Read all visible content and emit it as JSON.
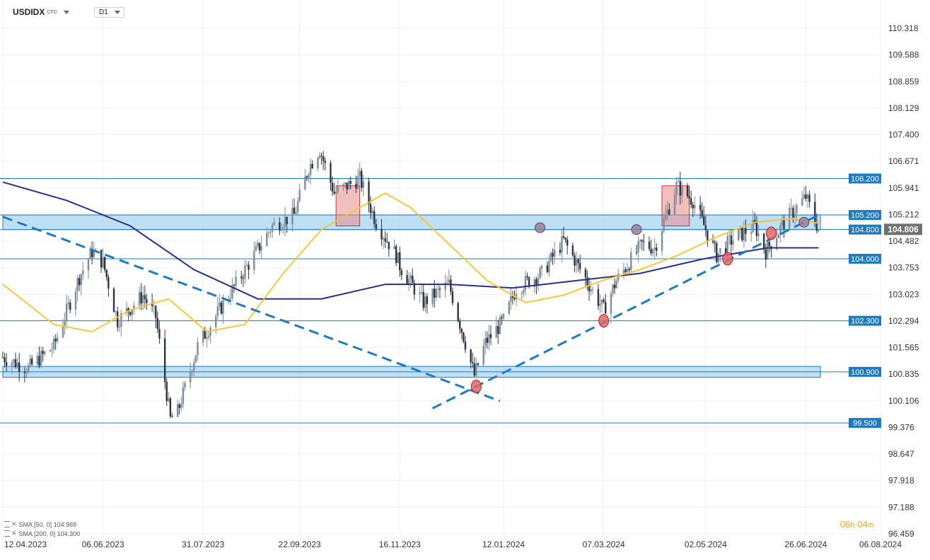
{
  "header": {
    "symbol": "USDIDX",
    "symbol_sub": "CFD",
    "timeframe": "D1"
  },
  "indicators": [
    {
      "label": "SMA [50, 0] 104.969",
      "color": "#f4c430"
    },
    {
      "label": "SMA [200, 0] 104.300",
      "color": "#2b2f86"
    }
  ],
  "timer": {
    "h": "06",
    "h_unit": "h",
    "m": "04",
    "m_unit": "m"
  },
  "colors": {
    "up": "#7f8c99",
    "down": "#2e3440",
    "level": "#1f7bbf",
    "zone_fill": "#a9d4f2",
    "sma50": "#f4c430",
    "sma200": "#2b2f86",
    "current": "#707070",
    "trend": "#1f7bbf",
    "resist_box": "#e88a8a"
  },
  "chart_data": {
    "type": "candlestick",
    "x_ticks": [
      "12.04.2023",
      "06.06.2023",
      "31.07.2023",
      "22.09.2023",
      "16.11.2023",
      "12.01.2024",
      "07.03.2024",
      "02.05.2024",
      "26.06.2024",
      "06.08.2024"
    ],
    "y_ticks": [
      "110.318",
      "109.588",
      "108.859",
      "108.129",
      "107.400",
      "106.671",
      "105.941",
      "105.212",
      "104.482",
      "103.753",
      "103.023",
      "102.294",
      "101.565",
      "100.835",
      "100.106",
      "99.376",
      "98.647",
      "97.918",
      "97.188",
      "96.459"
    ],
    "ylim": [
      96.459,
      110.318
    ],
    "x_range": [
      "12.04.2023",
      "06.08.2024"
    ],
    "grid": true,
    "current_price": "104.806",
    "levels": [
      "106.200",
      "105.200",
      "104.800",
      "104.000",
      "102.300",
      "100.900",
      "99.500"
    ],
    "zones": [
      {
        "from": 104.8,
        "to": 105.2,
        "start": "12.04.2023",
        "end": "04.07.2024"
      },
      {
        "from": 100.75,
        "to": 101.05,
        "start": "12.04.2023",
        "end": "04.07.2024"
      }
    ],
    "series": [
      {
        "name": "SMA [50, 0]",
        "last": 104.969
      },
      {
        "name": "SMA [200, 0]",
        "last": 104.3
      }
    ],
    "price_path": [
      [
        "12.04.2023",
        101.3
      ],
      [
        "26.04.2023",
        101.0
      ],
      [
        "10.05.2023",
        101.6
      ],
      [
        "24.05.2023",
        103.5
      ],
      [
        "31.05.2023",
        104.2
      ],
      [
        "06.06.2023",
        103.9
      ],
      [
        "14.06.2023",
        102.3
      ],
      [
        "28.06.2023",
        103.0
      ],
      [
        "05.07.2023",
        102.4
      ],
      [
        "13.07.2023",
        99.6
      ],
      [
        "17.07.2023",
        99.8
      ],
      [
        "28.07.2023",
        101.6
      ],
      [
        "09.08.2023",
        102.6
      ],
      [
        "23.08.2023",
        103.7
      ],
      [
        "07.09.2023",
        104.9
      ],
      [
        "19.09.2023",
        105.2
      ],
      [
        "27.09.2023",
        106.5
      ],
      [
        "03.10.2023",
        107.0
      ],
      [
        "11.10.2023",
        105.8
      ],
      [
        "25.10.2023",
        106.2
      ],
      [
        "03.11.2023",
        105.0
      ],
      [
        "14.11.2023",
        104.1
      ],
      [
        "16.11.2023",
        103.8
      ],
      [
        "29.11.2023",
        102.8
      ],
      [
        "13.12.2023",
        103.3
      ],
      [
        "27.12.2023",
        100.8
      ],
      [
        "02.01.2024",
        101.7
      ],
      [
        "12.01.2024",
        102.3
      ],
      [
        "19.01.2024",
        103.2
      ],
      [
        "02.02.2024",
        103.6
      ],
      [
        "14.02.2024",
        104.5
      ],
      [
        "22.02.2024",
        103.8
      ],
      [
        "07.03.2024",
        102.6
      ],
      [
        "14.03.2024",
        103.4
      ],
      [
        "28.03.2024",
        104.4
      ],
      [
        "04.04.2024",
        104.3
      ],
      [
        "16.04.2024",
        106.0
      ],
      [
        "25.04.2024",
        105.6
      ],
      [
        "02.05.2024",
        104.8
      ],
      [
        "08.05.2024",
        104.1
      ],
      [
        "16.05.2024",
        104.5
      ],
      [
        "29.05.2024",
        104.9
      ],
      [
        "04.06.2024",
        104.2
      ],
      [
        "14.06.2024",
        105.0
      ],
      [
        "26.06.2024",
        105.7
      ],
      [
        "03.07.2024",
        104.8
      ]
    ],
    "sma50_path": [
      [
        "12.04.2023",
        103.3
      ],
      [
        "10.05.2023",
        102.2
      ],
      [
        "31.05.2023",
        102.0
      ],
      [
        "21.06.2023",
        102.6
      ],
      [
        "12.07.2023",
        102.9
      ],
      [
        "02.08.2023",
        102.0
      ],
      [
        "23.08.2023",
        102.2
      ],
      [
        "13.09.2023",
        103.6
      ],
      [
        "04.10.2023",
        104.8
      ],
      [
        "25.10.2023",
        105.4
      ],
      [
        "08.11.2023",
        105.8
      ],
      [
        "22.11.2023",
        105.4
      ],
      [
        "13.12.2023",
        104.4
      ],
      [
        "03.01.2024",
        103.4
      ],
      [
        "24.01.2024",
        102.8
      ],
      [
        "14.02.2024",
        103.0
      ],
      [
        "06.03.2024",
        103.4
      ],
      [
        "27.03.2024",
        103.7
      ],
      [
        "17.04.2024",
        104.1
      ],
      [
        "08.05.2024",
        104.6
      ],
      [
        "29.05.2024",
        105.0
      ],
      [
        "19.06.2024",
        105.1
      ],
      [
        "03.07.2024",
        104.97
      ]
    ],
    "sma200_path": [
      [
        "12.04.2023",
        106.1
      ],
      [
        "17.05.2023",
        105.6
      ],
      [
        "21.06.2023",
        104.9
      ],
      [
        "26.07.2023",
        103.7
      ],
      [
        "30.08.2023",
        102.9
      ],
      [
        "04.10.2023",
        102.9
      ],
      [
        "08.11.2023",
        103.3
      ],
      [
        "13.12.2023",
        103.3
      ],
      [
        "17.01.2024",
        103.2
      ],
      [
        "21.02.2024",
        103.4
      ],
      [
        "27.03.2024",
        103.6
      ],
      [
        "01.05.2024",
        104.0
      ],
      [
        "05.06.2024",
        104.3
      ],
      [
        "03.07.2024",
        104.3
      ]
    ],
    "annotations": {
      "resistance_boxes": [
        {
          "start": "12.10.2023",
          "end": "25.10.2023",
          "from": 104.9,
          "to": 106.0
        },
        {
          "start": "08.04.2024",
          "end": "23.04.2024",
          "from": 104.9,
          "to": 106.0
        }
      ],
      "markers": [
        {
          "date": "28.12.2023",
          "value": 100.5,
          "kind": "red"
        },
        {
          "date": "07.03.2024",
          "value": 102.3,
          "kind": "red"
        },
        {
          "date": "14.05.2024",
          "value": 104.0,
          "kind": "red"
        },
        {
          "date": "07.06.2024",
          "value": 104.7,
          "kind": "red"
        },
        {
          "date": "01.02.2024",
          "value": 104.85,
          "kind": "gray"
        },
        {
          "date": "25.03.2024",
          "value": 104.8,
          "kind": "gray"
        },
        {
          "date": "25.06.2024",
          "value": 105.0,
          "kind": "gray"
        }
      ],
      "trendlines": [
        {
          "from": [
            "12.04.2023",
            105.15
          ],
          "to": [
            "10.01.2024",
            100.1
          ]
        },
        {
          "from": [
            "04.12.2023",
            99.9
          ],
          "to": [
            "03.07.2024",
            105.2
          ]
        }
      ]
    }
  }
}
